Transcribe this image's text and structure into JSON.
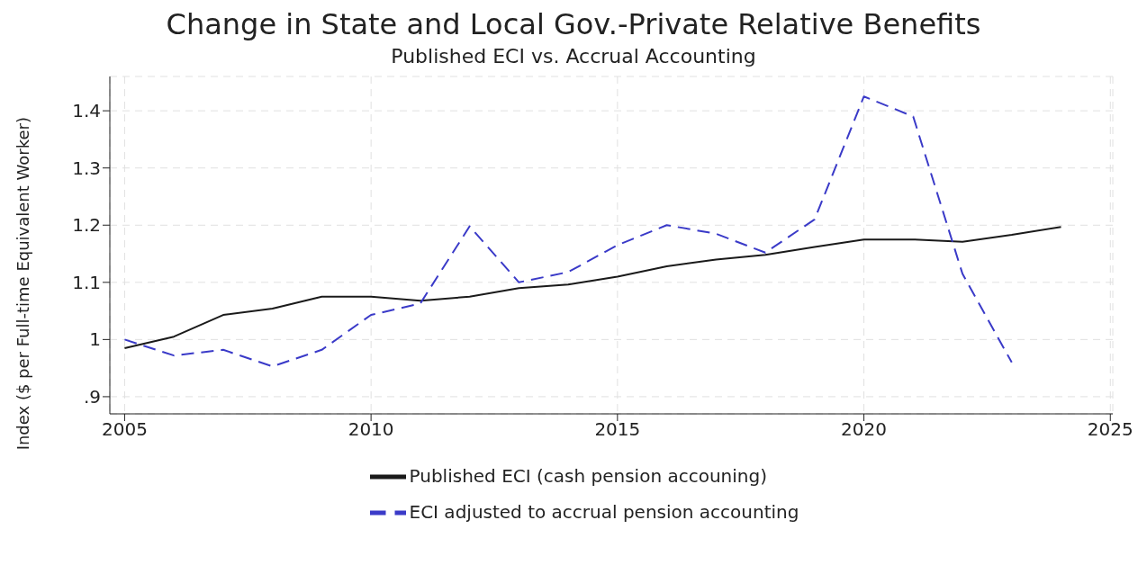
{
  "chart_data": {
    "type": "line",
    "title": "Change in State and Local Gov.-Private Relative Benefits",
    "subtitle": "Published ECI vs. Accrual Accounting",
    "ylabel": "Index ($ per Full-time Equivalent Worker)",
    "x": [
      2005,
      2006,
      2007,
      2008,
      2009,
      2010,
      2011,
      2012,
      2013,
      2014,
      2015,
      2016,
      2017,
      2018,
      2019,
      2020,
      2021,
      2022,
      2023,
      2024
    ],
    "series": [
      {
        "name": "Published ECI (cash pension accouning)",
        "color": "#1a1a1a",
        "line_style": "solid",
        "values": [
          0.985,
          1.005,
          1.043,
          1.054,
          1.075,
          1.075,
          1.068,
          1.075,
          1.09,
          1.096,
          1.11,
          1.128,
          1.14,
          1.148,
          1.162,
          1.175,
          1.175,
          1.171,
          1.183,
          1.197
        ]
      },
      {
        "name": "ECI adjusted to accrual pension accounting",
        "color": "#3a3ac8",
        "line_style": "dashed",
        "values": [
          1.0,
          0.972,
          0.982,
          0.953,
          0.982,
          1.043,
          1.063,
          1.198,
          1.1,
          1.118,
          1.165,
          1.2,
          1.185,
          1.152,
          1.21,
          1.425,
          1.39,
          1.115,
          0.96,
          null
        ]
      }
    ],
    "xlim": [
      2004.7,
      2025.05
    ],
    "xticks": [
      2005,
      2010,
      2015,
      2020,
      2025
    ],
    "ylim": [
      0.87,
      1.46
    ],
    "yticks": [
      {
        "value": 0.9,
        "label": ".9"
      },
      1,
      1.1,
      1.2,
      1.3,
      1.4
    ],
    "grid": true,
    "legend": "bottom",
    "marker": "none"
  }
}
